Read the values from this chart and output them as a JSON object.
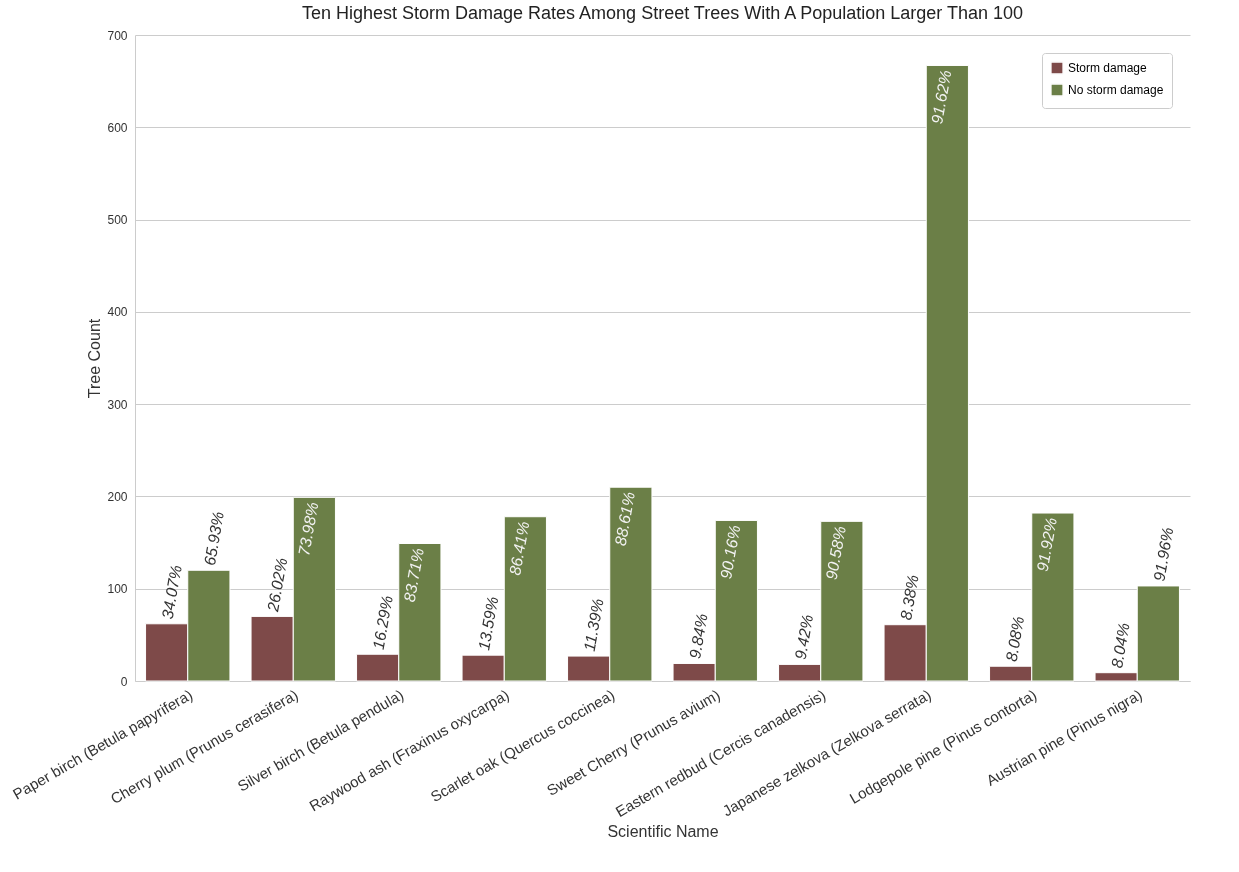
{
  "chart_data": {
    "type": "bar",
    "title": "Ten Highest Storm Damage Rates Among Street Trees With A Population Larger Than 100",
    "xlabel": "Scientific Name",
    "ylabel": "Tree Count",
    "categories": [
      "Paper birch (Betula papyrifera)",
      "Cherry plum (Prunus cerasifera)",
      "Silver birch (Betula pendula)",
      "Raywood ash (Fraxinus oxycarpa)",
      "Scarlet oak (Quercus coccinea)",
      "Sweet Cherry (Prunus avium)",
      "Eastern redbud (Cercis canadensis)",
      "Japanese zelkova (Zelkova serrata)",
      "Lodgepole pine (Pinus contorta)",
      "Austrian pine (Pinus nigra)"
    ],
    "series": [
      {
        "name": "Storm damage",
        "color": "#7e4a49",
        "values": [
          62,
          70,
          29,
          28,
          27,
          19,
          18,
          61,
          16,
          9
        ]
      },
      {
        "name": "No storm damage",
        "color": "#6b7f47",
        "values": [
          120,
          199,
          149,
          178,
          210,
          174,
          173,
          667,
          182,
          103
        ]
      }
    ],
    "annotations": [
      {
        "text": "34.07%",
        "x": "Paper birch (Betula papyrifera)",
        "y": 62
      },
      {
        "text": "26.02%",
        "x": "Cherry plum (Prunus cerasifera)",
        "y": 70
      },
      {
        "text": "16.29%",
        "x": "Silver birch (Betula pendula)",
        "y": 29
      },
      {
        "text": "13.59%",
        "x": "Raywood ash (Fraxinus oxycarpa)",
        "y": 28
      },
      {
        "text": "11.39%",
        "x": "Scarlet oak (Quercus coccinea)",
        "y": 27
      },
      {
        "text": "9.84%",
        "x": "Sweet Cherry (Prunus avium)",
        "y": 19
      },
      {
        "text": "9.42%",
        "x": "Eastern redbud (Cercis canadensis)",
        "y": 18
      },
      {
        "text": "8.38%",
        "x": "Japanese zelkova (Zelkova serrata)",
        "y": 61
      },
      {
        "text": "8.08%",
        "x": "Lodgepole pine (Pinus contorta)",
        "y": 16
      },
      {
        "text": "8.04%",
        "x": "Austrian pine (Pinus nigra)",
        "y": 9
      },
      {
        "text": "65.93%",
        "x": "Paper birch (Betula papyrifera)",
        "y": 120
      },
      {
        "text": "73.98%",
        "x": "Cherry plum (Prunus cerasifera)",
        "y": 199
      },
      {
        "text": "83.71%",
        "x": "Silver birch (Betula pendula)",
        "y": 149
      },
      {
        "text": "86.41%",
        "x": "Raywood ash (Fraxinus oxycarpa)",
        "y": 178
      },
      {
        "text": "88.61%",
        "x": "Scarlet oak (Quercus coccinea)",
        "y": 210
      },
      {
        "text": "90.16%",
        "x": "Sweet Cherry (Prunus avium)",
        "y": 174
      },
      {
        "text": "90.58%",
        "x": "Eastern redbud (Cercis canadensis)",
        "y": 173
      },
      {
        "text": "91.62%",
        "x": "Japanese zelkova (Zelkova serrata)",
        "y": 667
      },
      {
        "text": "91.92%",
        "x": "Lodgepole pine (Pinus contorta)",
        "y": 182
      },
      {
        "text": "91.96%",
        "x": "Austrian pine (Pinus nigra)",
        "y": 103
      }
    ],
    "ylim": [
      0,
      700
    ],
    "yticks": [
      0,
      100,
      200,
      300,
      400,
      500,
      600,
      700
    ],
    "grid": "y",
    "legend": "top right"
  }
}
